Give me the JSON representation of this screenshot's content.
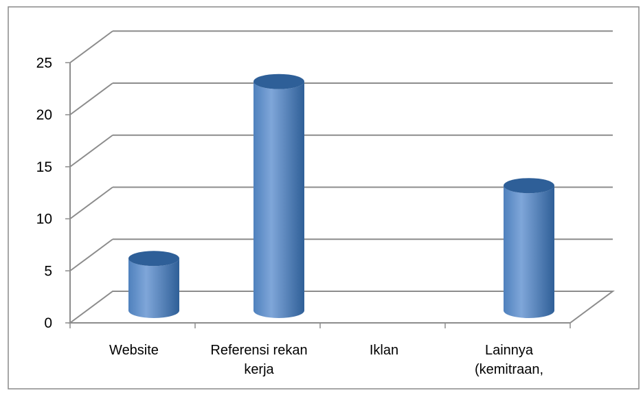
{
  "colors": {
    "frame": "#898989",
    "grid": "#8c8c8c",
    "bar_mid": "#4f81bd",
    "bar_light": "#7fa6d9",
    "bar_dark": "#2f5f97",
    "bar_top": "#2e5f98",
    "text": "#000000"
  },
  "chart_data": {
    "type": "bar",
    "style": "3d-cylinder",
    "categories": [
      "Website",
      "Referensi rekan kerja",
      "Iklan",
      "Lainnya (kemitraan,"
    ],
    "category_label_lines": [
      [
        "Website"
      ],
      [
        "Referensi rekan",
        "kerja"
      ],
      [
        "Iklan"
      ],
      [
        "Lainnya",
        "(kemitraan,"
      ]
    ],
    "values": [
      5,
      22,
      0,
      12
    ],
    "ylim": [
      0,
      25
    ],
    "y_ticks": [
      "0",
      "5",
      "10",
      "15",
      "20",
      "25"
    ],
    "title": "",
    "xlabel": "",
    "ylabel": "",
    "grid": true,
    "legend": "none"
  }
}
